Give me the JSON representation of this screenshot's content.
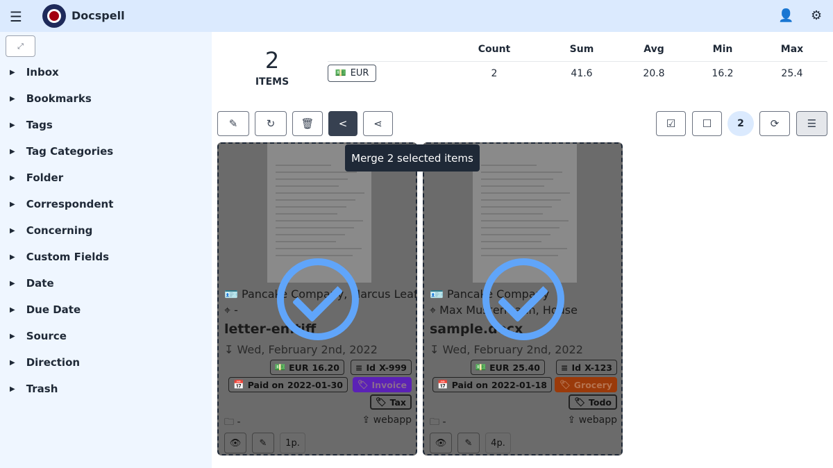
{
  "header": {
    "app_name": "Docspell"
  },
  "sidebar": {
    "items": [
      {
        "label": "Inbox"
      },
      {
        "label": "Bookmarks"
      },
      {
        "label": "Tags"
      },
      {
        "label": "Tag Categories"
      },
      {
        "label": "Folder"
      },
      {
        "label": "Correspondent"
      },
      {
        "label": "Concerning"
      },
      {
        "label": "Custom Fields"
      },
      {
        "label": "Date"
      },
      {
        "label": "Due Date"
      },
      {
        "label": "Source"
      },
      {
        "label": "Direction"
      },
      {
        "label": "Trash"
      }
    ]
  },
  "stats": {
    "count_value": "2",
    "count_label": "ITEMS",
    "columns": [
      "Count",
      "Sum",
      "Avg",
      "Min",
      "Max"
    ],
    "currency": "EUR",
    "values": [
      "2",
      "41.6",
      "20.8",
      "16.2",
      "25.4"
    ]
  },
  "toolbar": {
    "selected_count": "2",
    "tooltip": "Merge 2 selected items"
  },
  "cards": [
    {
      "correspondent": "Pancake Company, Marcus Leaf",
      "concerning": "-",
      "name": "letter-en.tiff",
      "date": "Wed, February 2nd, 2022",
      "amount_label": "EUR",
      "amount": "16.20",
      "id_label": "Id",
      "id": "X-999",
      "paid_label": "Paid on",
      "paid": "2022-01-30",
      "tags": [
        {
          "name": "Invoice",
          "color": "#5b21b6"
        },
        {
          "name": "Tax",
          "color": ""
        }
      ],
      "folder": "-",
      "source": "webapp",
      "pages": "1p."
    },
    {
      "correspondent": "Pancake Company",
      "concerning": "Max Mustermann, House",
      "name": "sample.docx",
      "date": "Wed, February 2nd, 2022",
      "amount_label": "EUR",
      "amount": "25.40",
      "id_label": "Id",
      "id": "X-123",
      "paid_label": "Paid on",
      "paid": "2022-01-18",
      "tags": [
        {
          "name": "Grocery",
          "color": "#9a3a0a"
        },
        {
          "name": "Todo",
          "color": ""
        }
      ],
      "folder": "-",
      "source": "webapp",
      "pages": "4p."
    }
  ]
}
